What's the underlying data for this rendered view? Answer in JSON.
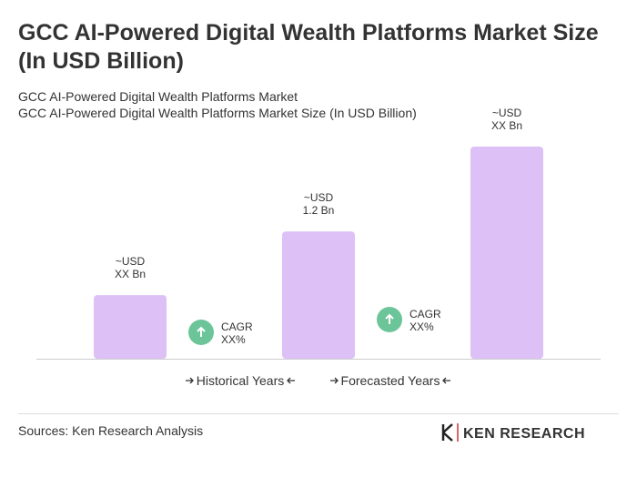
{
  "chart_data": {
    "type": "bar",
    "title": "GCC AI-Powered Digital Wealth Platforms Market Size (In USD Billion)",
    "subtitle": [
      "GCC AI-Powered Digital Wealth Platforms Market",
      "GCC AI-Powered Digital Wealth Platforms Market Size (In USD Billion)"
    ],
    "categories": [
      null,
      null,
      null
    ],
    "values": [
      0.6,
      1.2,
      2.0
    ],
    "value_labels": [
      [
        "~USD",
        "XX Bn"
      ],
      [
        "~USD",
        "1.2 Bn"
      ],
      [
        "~USD",
        "XX Bn"
      ]
    ],
    "color": "#dcc0f6",
    "ylim": [
      0,
      2.0
    ],
    "annotations": [
      [
        "CAGR",
        "XX%"
      ],
      [
        "CAGR",
        "XX%"
      ]
    ],
    "annotation_color": "#6cc499",
    "periods": [
      "Historical Years",
      "Forecasted Years"
    ],
    "source": "Sources: Ken Research Analysis",
    "logo": "KEN RESEARCH"
  }
}
